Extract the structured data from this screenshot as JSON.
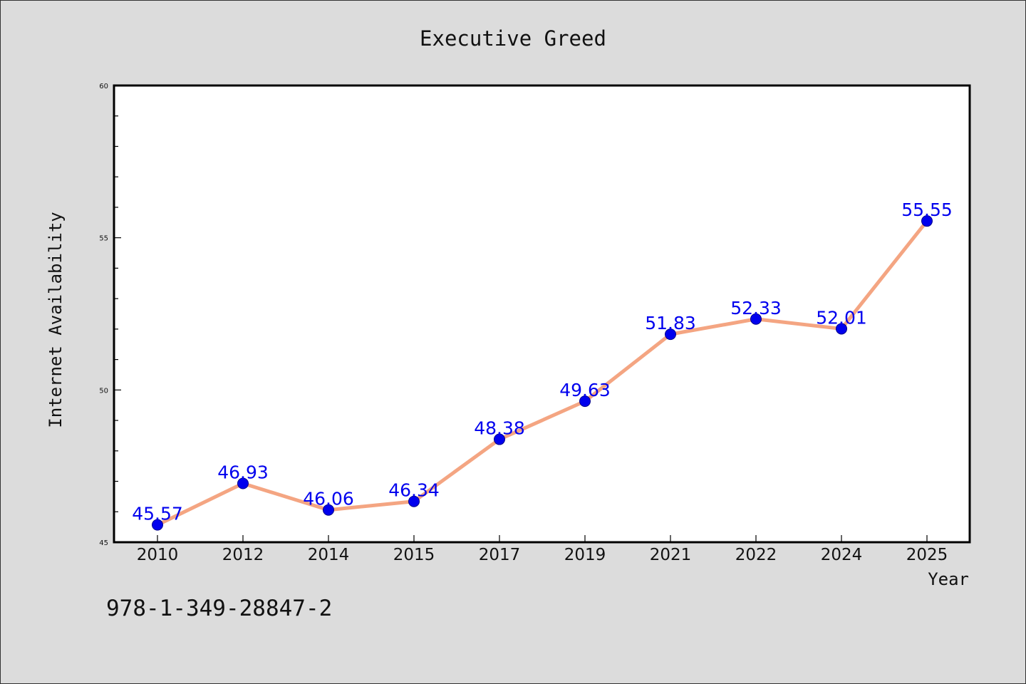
{
  "chart_data": {
    "type": "line",
    "title": "Executive Greed",
    "xlabel": "Year",
    "ylabel": "Internet Availability",
    "categories": [
      "2010",
      "2012",
      "2014",
      "2015",
      "2017",
      "2019",
      "2021",
      "2022",
      "2024",
      "2025"
    ],
    "series": [
      {
        "values": [
          45.57,
          46.93,
          46.06,
          46.34,
          48.38,
          49.63,
          51.83,
          52.33,
          52.01,
          55.55
        ],
        "labels": [
          "45.57",
          "46.93",
          "46.06",
          "46.34",
          "48.38",
          "49.63",
          "51.83",
          "52.33",
          "52.01",
          "55.55"
        ]
      }
    ],
    "ylim": [
      45,
      60
    ],
    "yticks": [
      "45",
      "50",
      "55",
      "60"
    ],
    "grid": false,
    "colors": {
      "line": "#f4a582",
      "marker": "#0000ee",
      "label": "#0000ee",
      "background": "#dcdcdc",
      "plot_background": "#ffffff"
    }
  },
  "footnote": "978-1-349-28847-2"
}
